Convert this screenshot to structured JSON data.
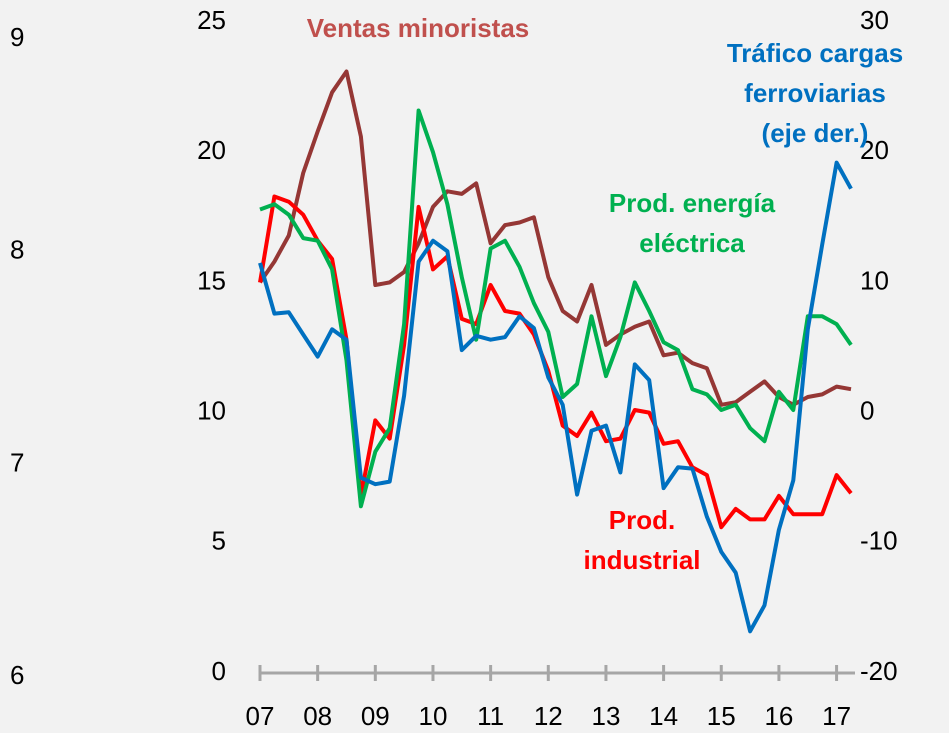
{
  "chart_data": {
    "type": "line",
    "annotations": [
      {
        "lines": [
          "Ventas minoristas"
        ],
        "color": "#c0504d"
      },
      {
        "lines": [
          "Tráfico cargas",
          "ferroviarias",
          "(eje der.)"
        ],
        "color": "#0070c0"
      },
      {
        "lines": [
          "Prod. energía",
          "eléctrica"
        ],
        "color": "#00b050"
      },
      {
        "lines": [
          "Prod.",
          "industrial"
        ],
        "color": "#ff0000"
      }
    ],
    "x": [
      2007,
      2007.25,
      2007.5,
      2007.75,
      2008,
      2008.25,
      2008.5,
      2008.75,
      2009,
      2009.25,
      2009.5,
      2009.75,
      2010,
      2010.25,
      2010.5,
      2010.75,
      2011,
      2011.25,
      2011.5,
      2011.75,
      2012,
      2012.25,
      2012.5,
      2012.75,
      2013,
      2013.25,
      2013.5,
      2013.75,
      2014,
      2014.25,
      2014.5,
      2014.75,
      2015,
      2015.25,
      2015.5,
      2015.75,
      2016,
      2016.25,
      2016.5,
      2016.75,
      2017,
      2017.25
    ],
    "series": [
      {
        "name": "Ventas minoristas",
        "color": "#953735",
        "values": [
          15.0,
          15.8,
          16.8,
          19.2,
          20.8,
          22.3,
          23.1,
          20.6,
          14.9,
          15.0,
          15.4,
          16.5,
          17.9,
          18.5,
          18.4,
          18.8,
          16.5,
          17.2,
          17.3,
          17.5,
          15.2,
          13.9,
          13.5,
          14.9,
          12.6,
          13.0,
          13.3,
          13.5,
          12.2,
          12.3,
          11.9,
          11.7,
          10.3,
          10.4,
          10.8,
          11.2,
          10.6,
          10.3,
          10.6,
          10.7,
          11.0,
          10.9
        ]
      },
      {
        "name": "Prod. industrial",
        "color": "#ff0000",
        "values": [
          15.0,
          18.3,
          18.1,
          17.6,
          16.6,
          15.9,
          12.8,
          6.8,
          9.7,
          9.0,
          12.6,
          17.9,
          15.5,
          16.0,
          13.6,
          13.4,
          14.9,
          13.9,
          13.8,
          13.0,
          11.6,
          9.5,
          9.1,
          10.0,
          8.9,
          9.0,
          10.1,
          10.0,
          8.8,
          8.9,
          7.9,
          7.6,
          5.6,
          6.3,
          5.9,
          5.9,
          6.8,
          6.1,
          6.1,
          6.1,
          7.6,
          6.9
        ]
      },
      {
        "name": "Prod. energía eléctrica",
        "color": "#00b050",
        "values": [
          17.8,
          18.0,
          17.6,
          16.7,
          16.6,
          15.5,
          12.0,
          6.4,
          8.5,
          9.4,
          13.4,
          21.6,
          20.0,
          18.0,
          15.2,
          12.8,
          16.3,
          16.6,
          15.6,
          14.2,
          13.1,
          10.6,
          11.1,
          13.7,
          11.4,
          12.9,
          15.0,
          13.9,
          12.7,
          12.4,
          10.9,
          10.7,
          10.1,
          10.3,
          9.4,
          8.9,
          10.8,
          10.1,
          13.7,
          13.7,
          13.4,
          12.6
        ]
      },
      {
        "name": "Tráfico cargas ferroviarias (eje der.)",
        "color": "#0070c0",
        "axis": "y2",
        "values": [
          11.5,
          7.6,
          7.7,
          6.0,
          4.3,
          6.4,
          5.6,
          -5.0,
          -5.5,
          -5.3,
          1.3,
          11.6,
          13.2,
          12.4,
          4.8,
          5.9,
          5.6,
          5.8,
          7.4,
          6.5,
          2.7,
          0.6,
          -6.3,
          -1.4,
          -1.0,
          -4.6,
          3.7,
          2.5,
          -5.8,
          -4.2,
          -4.3,
          -8.0,
          -10.7,
          -12.3,
          -16.8,
          -14.8,
          -9.0,
          -5.2,
          6.4,
          12.9,
          19.2,
          17.2
        ]
      }
    ],
    "xlim": [
      2007,
      2017.25
    ],
    "xticks": [
      {
        "value": 2007,
        "label": "07"
      },
      {
        "value": 2008,
        "label": "08"
      },
      {
        "value": 2009,
        "label": "09"
      },
      {
        "value": 2010,
        "label": "10"
      },
      {
        "value": 2011,
        "label": "11"
      },
      {
        "value": 2012,
        "label": "12"
      },
      {
        "value": 2013,
        "label": "13"
      },
      {
        "value": 2014,
        "label": "14"
      },
      {
        "value": 2015,
        "label": "15"
      },
      {
        "value": 2016,
        "label": "16"
      },
      {
        "value": 2017,
        "label": "17"
      }
    ],
    "ylim": [
      0,
      25
    ],
    "yticks": [
      0,
      5,
      10,
      15,
      20,
      25
    ],
    "y2lim": [
      -20,
      30
    ],
    "y2ticks": [
      -20,
      -10,
      0,
      10,
      20,
      30
    ],
    "y3lim": [
      6.02,
      9.08
    ],
    "y3ticks": [
      6,
      7,
      8,
      9
    ]
  }
}
